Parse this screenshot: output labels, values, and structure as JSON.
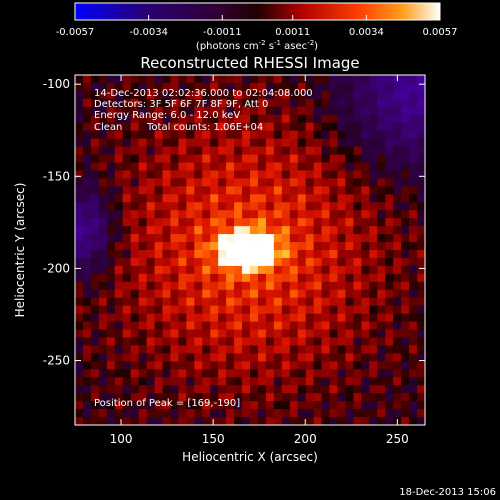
{
  "chart_data": {
    "type": "heatmap",
    "title": "Reconstructed RHESSI Image",
    "xlabel": "Heliocentric X (arcsec)",
    "ylabel": "Heliocentric Y (arcsec)",
    "xlim": [
      75,
      265
    ],
    "ylim": [
      -285,
      -95
    ],
    "x_ticks": [
      100,
      150,
      200,
      250
    ],
    "y_ticks": [
      -100,
      -150,
      -200,
      -250
    ],
    "colorbar": {
      "ticks": [
        -0.0057,
        -0.0034,
        -0.0011,
        0.0011,
        0.0034,
        0.0057
      ],
      "tick_labels": [
        "-0.0057",
        "-0.0034",
        "-0.0011",
        "0.0011",
        "0.0034",
        "0.0057"
      ],
      "range": [
        -0.0057,
        0.0057
      ],
      "units_label": {
        "pre": "(photons cm",
        "sup1": "-2",
        "mid1": " s",
        "sup2": "-1",
        "mid2": " asec",
        "sup3": "-2",
        "post": ")"
      }
    },
    "annotations": {
      "time_range": "14-Dec-2013 02:02:36.000 to 02:04:08.000",
      "detectors": "Detectors: 3F 5F 6F 7F 8F 9F, Att 0",
      "energy": "Energy Range: 6.0 - 12.0 keV",
      "clean_label": "Clean",
      "counts": "Total counts: 1.06E+04",
      "peak": "Position of Peak = [169,-190]"
    },
    "peak": {
      "x": 169,
      "y": -190,
      "value": 0.0057
    },
    "footer_date": "18-Dec-2013 15:06"
  }
}
